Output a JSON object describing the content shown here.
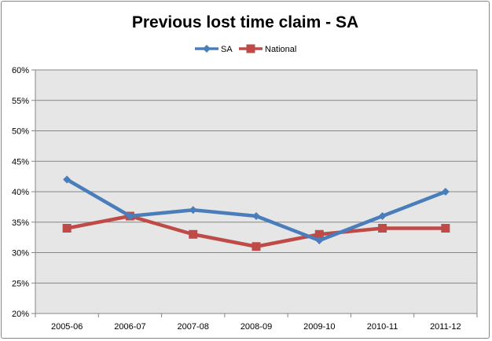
{
  "chart_data": {
    "type": "line",
    "title": "Previous lost time claim - SA",
    "xlabel": "",
    "ylabel": "",
    "categories": [
      "2005-06",
      "2006-07",
      "2007-08",
      "2008-09",
      "2009-10",
      "2010-11",
      "2011-12"
    ],
    "ylim": [
      20,
      60
    ],
    "ytick_step": 5,
    "y_tick_labels": [
      "20%",
      "25%",
      "30%",
      "35%",
      "40%",
      "45%",
      "50%",
      "55%",
      "60%"
    ],
    "grid": true,
    "legend_position": "top",
    "plot_background": "#e6e6e6",
    "series": [
      {
        "name": "SA",
        "color": "#4a7ebb",
        "marker": "diamond",
        "values": [
          42,
          36,
          37,
          36,
          32,
          36,
          40
        ]
      },
      {
        "name": "National",
        "color": "#be4b48",
        "marker": "square",
        "values": [
          34,
          36,
          33,
          31,
          33,
          34,
          34
        ]
      }
    ]
  }
}
